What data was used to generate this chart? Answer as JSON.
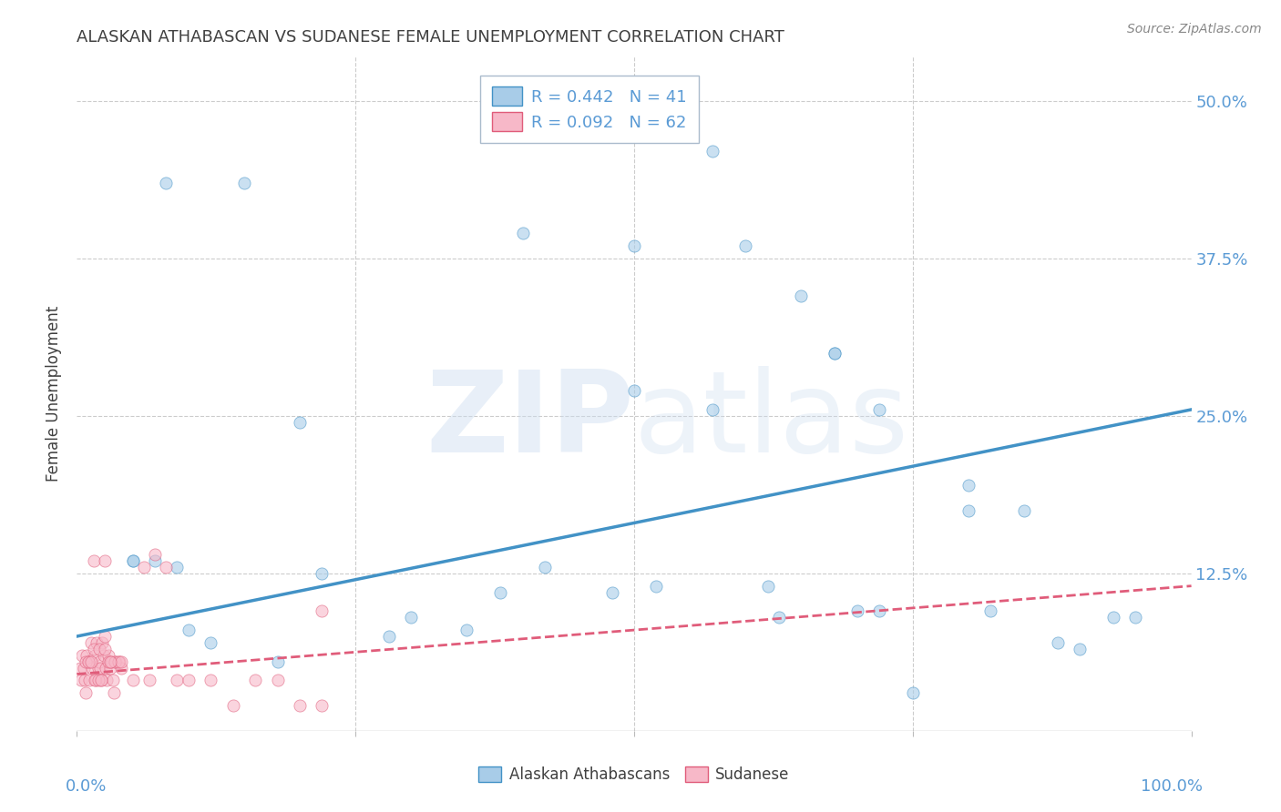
{
  "title": "ALASKAN ATHABASCAN VS SUDANESE FEMALE UNEMPLOYMENT CORRELATION CHART",
  "source": "Source: ZipAtlas.com",
  "ylabel": "Female Unemployment",
  "yticks": [
    0.0,
    0.125,
    0.25,
    0.375,
    0.5
  ],
  "ytick_labels": [
    "",
    "12.5%",
    "25.0%",
    "37.5%",
    "50.0%"
  ],
  "xlim": [
    0.0,
    1.0
  ],
  "ylim": [
    0.0,
    0.535
  ],
  "blue_color": "#a8cce8",
  "blue_color_line": "#4292c6",
  "pink_color": "#f7b8c8",
  "pink_color_line": "#e05c7a",
  "legend_blue_label": "R = 0.442   N = 41",
  "legend_pink_label": "R = 0.092   N = 62",
  "blue_scatter_x": [
    0.08,
    0.15,
    0.4,
    0.5,
    0.57,
    0.6,
    0.65,
    0.68,
    0.68,
    0.72,
    0.8,
    0.05,
    0.05,
    0.07,
    0.09,
    0.22,
    0.28,
    0.35,
    0.48,
    0.5,
    0.57,
    0.72,
    0.8,
    0.85,
    0.9,
    0.93,
    0.1,
    0.12,
    0.2,
    0.3,
    0.38,
    0.42,
    0.52,
    0.62,
    0.63,
    0.7,
    0.75,
    0.82,
    0.88,
    0.95,
    0.18
  ],
  "blue_scatter_y": [
    0.435,
    0.435,
    0.395,
    0.385,
    0.46,
    0.385,
    0.345,
    0.3,
    0.3,
    0.255,
    0.195,
    0.135,
    0.135,
    0.135,
    0.13,
    0.125,
    0.075,
    0.08,
    0.11,
    0.27,
    0.255,
    0.095,
    0.175,
    0.175,
    0.065,
    0.09,
    0.08,
    0.07,
    0.245,
    0.09,
    0.11,
    0.13,
    0.115,
    0.115,
    0.09,
    0.095,
    0.03,
    0.095,
    0.07,
    0.09,
    0.055
  ],
  "pink_scatter_x": [
    0.003,
    0.004,
    0.005,
    0.006,
    0.007,
    0.008,
    0.009,
    0.01,
    0.011,
    0.012,
    0.013,
    0.014,
    0.015,
    0.016,
    0.017,
    0.018,
    0.019,
    0.02,
    0.021,
    0.022,
    0.023,
    0.024,
    0.025,
    0.026,
    0.027,
    0.028,
    0.03,
    0.032,
    0.033,
    0.035,
    0.038,
    0.04,
    0.05,
    0.06,
    0.065,
    0.07,
    0.08,
    0.09,
    0.1,
    0.12,
    0.14,
    0.16,
    0.18,
    0.2,
    0.22,
    0.008,
    0.01,
    0.013,
    0.016,
    0.019,
    0.022,
    0.025,
    0.028,
    0.031,
    0.034,
    0.037,
    0.04,
    0.015,
    0.02,
    0.025,
    0.03,
    0.22
  ],
  "pink_scatter_y": [
    0.05,
    0.04,
    0.06,
    0.05,
    0.04,
    0.03,
    0.06,
    0.055,
    0.04,
    0.055,
    0.07,
    0.05,
    0.135,
    0.06,
    0.04,
    0.07,
    0.05,
    0.055,
    0.05,
    0.04,
    0.07,
    0.06,
    0.135,
    0.05,
    0.04,
    0.06,
    0.05,
    0.04,
    0.03,
    0.055,
    0.055,
    0.05,
    0.04,
    0.13,
    0.04,
    0.14,
    0.13,
    0.04,
    0.04,
    0.04,
    0.02,
    0.04,
    0.04,
    0.02,
    0.095,
    0.055,
    0.055,
    0.055,
    0.04,
    0.04,
    0.04,
    0.075,
    0.055,
    0.055,
    0.055,
    0.055,
    0.055,
    0.065,
    0.065,
    0.065,
    0.055,
    0.02
  ],
  "blue_line_x0": 0.0,
  "blue_line_x1": 1.0,
  "blue_line_y0": 0.075,
  "blue_line_y1": 0.255,
  "pink_line_x0": 0.0,
  "pink_line_x1": 1.0,
  "pink_line_y0": 0.045,
  "pink_line_y1": 0.115,
  "watermark_zip": "ZIP",
  "watermark_atlas": "atlas",
  "background_color": "#ffffff",
  "grid_color": "#cccccc",
  "axis_color": "#5b9bd5",
  "title_color": "#404040",
  "source_color": "#888888",
  "scatter_alpha": 0.6,
  "scatter_size": 90,
  "legend_box_color": "#ddeeff",
  "legend_box_edge": "#aaccee"
}
